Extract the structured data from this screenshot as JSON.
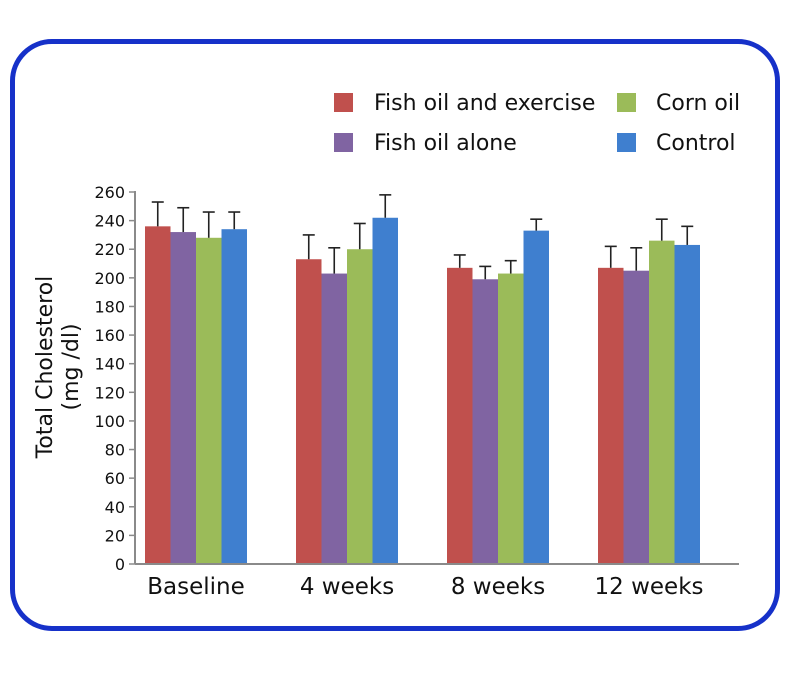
{
  "chart_data": {
    "type": "bar",
    "ylabel_line1": "Total Cholesterol",
    "ylabel_line2": "(mg /dl)",
    "ylim": [
      0,
      260
    ],
    "yticks": [
      0,
      20,
      40,
      60,
      80,
      100,
      120,
      140,
      160,
      180,
      200,
      220,
      240,
      260
    ],
    "categories": [
      "Baseline",
      "4 weeks",
      "8 weeks",
      "12 weeks"
    ],
    "error_bars": "upper",
    "legend_position": "top-right",
    "grid": false,
    "series": [
      {
        "name": "Fish oil and exercise",
        "color": "#c0504d",
        "values": [
          236,
          213,
          207,
          207
        ],
        "errors": [
          17,
          17,
          9,
          15
        ]
      },
      {
        "name": "Fish oil alone",
        "color": "#8064a2",
        "values": [
          232,
          203,
          199,
          205
        ],
        "errors": [
          17,
          18,
          9,
          16
        ]
      },
      {
        "name": "Corn oil",
        "color": "#9bbb59",
        "values": [
          228,
          220,
          203,
          226
        ],
        "errors": [
          18,
          18,
          9,
          15
        ]
      },
      {
        "name": "Control",
        "color": "#3f7fcf",
        "values": [
          234,
          242,
          233,
          223
        ],
        "errors": [
          12,
          16,
          8,
          13
        ]
      }
    ]
  },
  "frame": {
    "border_color": "#1631c9"
  }
}
